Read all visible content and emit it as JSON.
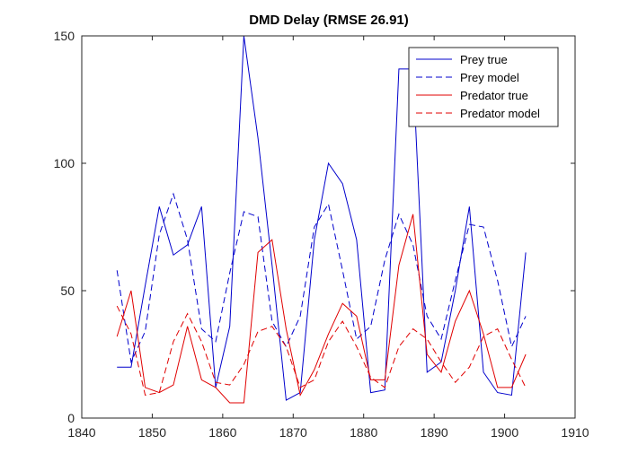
{
  "chart_data": {
    "type": "line",
    "title": "DMD Delay (RMSE 26.91)",
    "xlabel": "",
    "ylabel": "",
    "xlim": [
      1840,
      1910
    ],
    "ylim": [
      0,
      150
    ],
    "xticks": [
      1840,
      1850,
      1860,
      1870,
      1880,
      1890,
      1900,
      1910
    ],
    "yticks": [
      0,
      50,
      100,
      150
    ],
    "grid": false,
    "legend_position": "top-right",
    "x": [
      1845,
      1847,
      1849,
      1851,
      1853,
      1855,
      1857,
      1859,
      1861,
      1863,
      1865,
      1867,
      1869,
      1871,
      1873,
      1875,
      1877,
      1879,
      1881,
      1883,
      1885,
      1887,
      1889,
      1891,
      1893,
      1895,
      1897,
      1899,
      1901,
      1903
    ],
    "series": [
      {
        "name": "Prey true",
        "color": "#0000CC",
        "dash": "solid",
        "values": [
          20,
          20,
          52,
          83,
          64,
          68,
          83,
          12,
          36,
          150,
          110,
          60,
          7,
          10,
          70,
          100,
          92,
          70,
          10,
          11,
          137,
          137,
          18,
          22,
          50,
          83,
          18,
          10,
          9,
          65
        ]
      },
      {
        "name": "Prey model",
        "color": "#0000CC",
        "dash": "dashed",
        "values": [
          58,
          22,
          34,
          72,
          88,
          70,
          35,
          30,
          57,
          81,
          79,
          38,
          28,
          40,
          75,
          84,
          58,
          31,
          36,
          62,
          80,
          68,
          40,
          31,
          54,
          76,
          75,
          54,
          28,
          40
        ]
      },
      {
        "name": "Predator true",
        "color": "#E00000",
        "dash": "solid",
        "values": [
          32,
          50,
          12,
          10,
          13,
          36,
          15,
          12,
          6,
          6,
          65,
          70,
          35,
          9,
          19,
          33,
          45,
          40,
          15,
          15,
          60,
          80,
          25,
          18,
          38,
          50,
          33,
          12,
          12,
          25
        ]
      },
      {
        "name": "Predator model",
        "color": "#E00000",
        "dash": "dashed",
        "values": [
          44,
          33,
          9,
          10,
          30,
          41,
          30,
          14,
          13,
          21,
          34,
          36,
          28,
          12,
          15,
          30,
          38,
          28,
          16,
          12,
          28,
          35,
          31,
          22,
          14,
          20,
          32,
          35,
          23,
          12
        ]
      }
    ]
  }
}
